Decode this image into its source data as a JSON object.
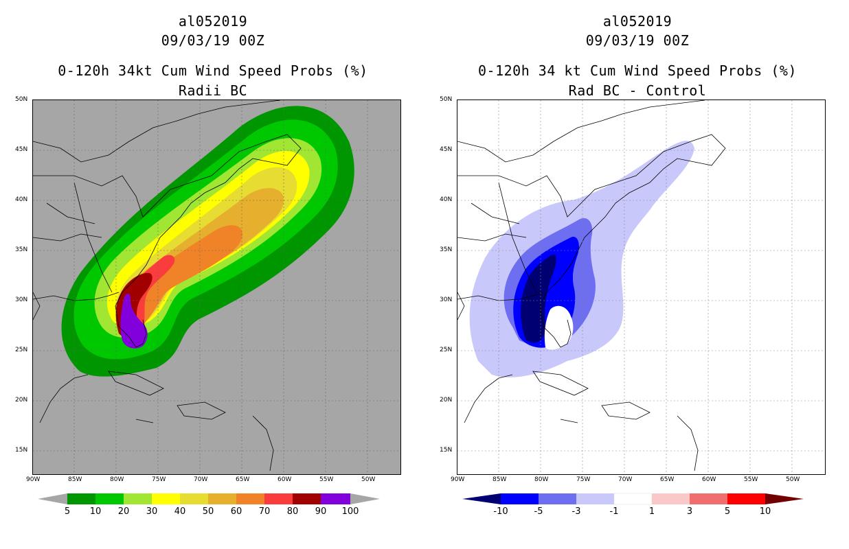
{
  "left_panel": {
    "storm_id": "al052019",
    "datetime": "09/03/19 00Z",
    "title_line": "0-120h 34kt Cum Wind Speed Probs (%)",
    "subtitle": "Radii BC",
    "colors": {
      "background": "#a6a6a6",
      "c5": "#009600",
      "c10": "#00c800",
      "c20": "#a0e632",
      "c30": "#ffff00",
      "c40": "#e6dc32",
      "c50": "#e6af2d",
      "c60": "#f08228",
      "c70": "#fa3c3c",
      "c80": "#a00000",
      "c90": "#8200dc"
    },
    "colorbar": {
      "labels": [
        "5",
        "10",
        "20",
        "30",
        "40",
        "50",
        "60",
        "70",
        "80",
        "90",
        "100"
      ],
      "colors": [
        "#a6a6a6",
        "#009600",
        "#00c800",
        "#a0e632",
        "#ffff00",
        "#e6dc32",
        "#e6af2d",
        "#f08228",
        "#fa3c3c",
        "#a00000",
        "#8200dc",
        "#a6a6a6"
      ]
    }
  },
  "right_panel": {
    "storm_id": "al052019",
    "datetime": "09/03/19 00Z",
    "title_line": "0-120h 34 kt Cum Wind Speed Probs (%)",
    "subtitle": "Rad BC - Control",
    "colors": {
      "background": "#ffffff",
      "n1": "#c8c8fa",
      "n3": "#6e6ef0",
      "n5": "#0000ff",
      "n10": "#000073"
    },
    "colorbar": {
      "labels": [
        "-10",
        "-5",
        "-3",
        "-1",
        "1",
        "3",
        "5",
        "10"
      ],
      "colors": [
        "#000073",
        "#0000ff",
        "#6e6ef0",
        "#c8c8fa",
        "#ffffff",
        "#fac8c8",
        "#f06e6e",
        "#ff0000",
        "#730000"
      ]
    }
  },
  "axes": {
    "lat_labels": [
      "50N",
      "45N",
      "40N",
      "35N",
      "30N",
      "25N",
      "20N",
      "15N"
    ],
    "lon_labels": [
      "90W",
      "85W",
      "80W",
      "75W",
      "70W",
      "65W",
      "60W",
      "55W",
      "50W"
    ]
  }
}
